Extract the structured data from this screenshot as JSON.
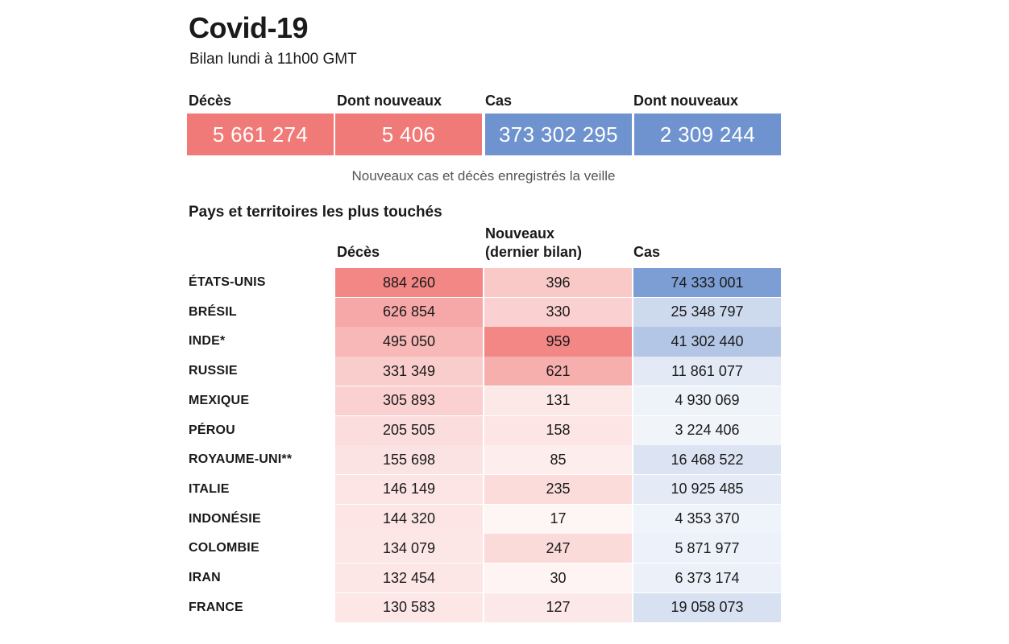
{
  "header": {
    "title": "Covid-19",
    "subtitle": "Bilan lundi à 11h00 GMT"
  },
  "summary": [
    {
      "label": "Décès",
      "value": "5 661 274",
      "color": "#f07a78"
    },
    {
      "label": "Dont nouveaux",
      "value": "5 406",
      "color": "#f07a78"
    },
    {
      "label": "Cas",
      "value": "373 302 295",
      "color": "#6f93cf"
    },
    {
      "label": "Dont nouveaux",
      "value": "2 309 244",
      "color": "#6f93cf"
    }
  ],
  "note": "Nouveaux cas et décès enregistrés la veille",
  "section_title": "Pays et territoires les plus touchés",
  "colors": {
    "deaths": "#f07a78",
    "cases": "#6f93cf"
  },
  "chart_data": {
    "type": "table",
    "title": "Pays et territoires les plus touchés",
    "columns": [
      "Décès",
      "Nouveaux (dernier bilan)",
      "Cas"
    ],
    "column_headers": {
      "deaths": "Décès",
      "new_line1": "Nouveaux",
      "new_line2": "(dernier bilan)",
      "cases": "Cas"
    },
    "rows": [
      {
        "country": "ÉTATS-UNIS",
        "deaths": "884 260",
        "new": "396",
        "cases": "74 333 001"
      },
      {
        "country": "BRÉSIL",
        "deaths": "626 854",
        "new": "330",
        "cases": "25 348 797"
      },
      {
        "country": "INDE*",
        "deaths": "495 050",
        "new": "959",
        "cases": "41 302 440"
      },
      {
        "country": "RUSSIE",
        "deaths": "331 349",
        "new": "621",
        "cases": "11 861 077"
      },
      {
        "country": "MEXIQUE",
        "deaths": "305 893",
        "new": "131",
        "cases": "4 930 069"
      },
      {
        "country": "PÉROU",
        "deaths": "205 505",
        "new": "158",
        "cases": "3 224 406"
      },
      {
        "country": "ROYAUME-UNI**",
        "deaths": "155 698",
        "new": "85",
        "cases": "16 468 522"
      },
      {
        "country": "ITALIE",
        "deaths": "146 149",
        "new": "235",
        "cases": "10 925 485"
      },
      {
        "country": "INDONÉSIE",
        "deaths": "144 320",
        "new": "17",
        "cases": "4 353 370"
      },
      {
        "country": "COLOMBIE",
        "deaths": "134 079",
        "new": "247",
        "cases": "5 871 977"
      },
      {
        "country": "IRAN",
        "deaths": "132 454",
        "new": "30",
        "cases": "6 373 174"
      },
      {
        "country": "FRANCE",
        "deaths": "130 583",
        "new": "127",
        "cases": "19 058 073"
      }
    ]
  }
}
